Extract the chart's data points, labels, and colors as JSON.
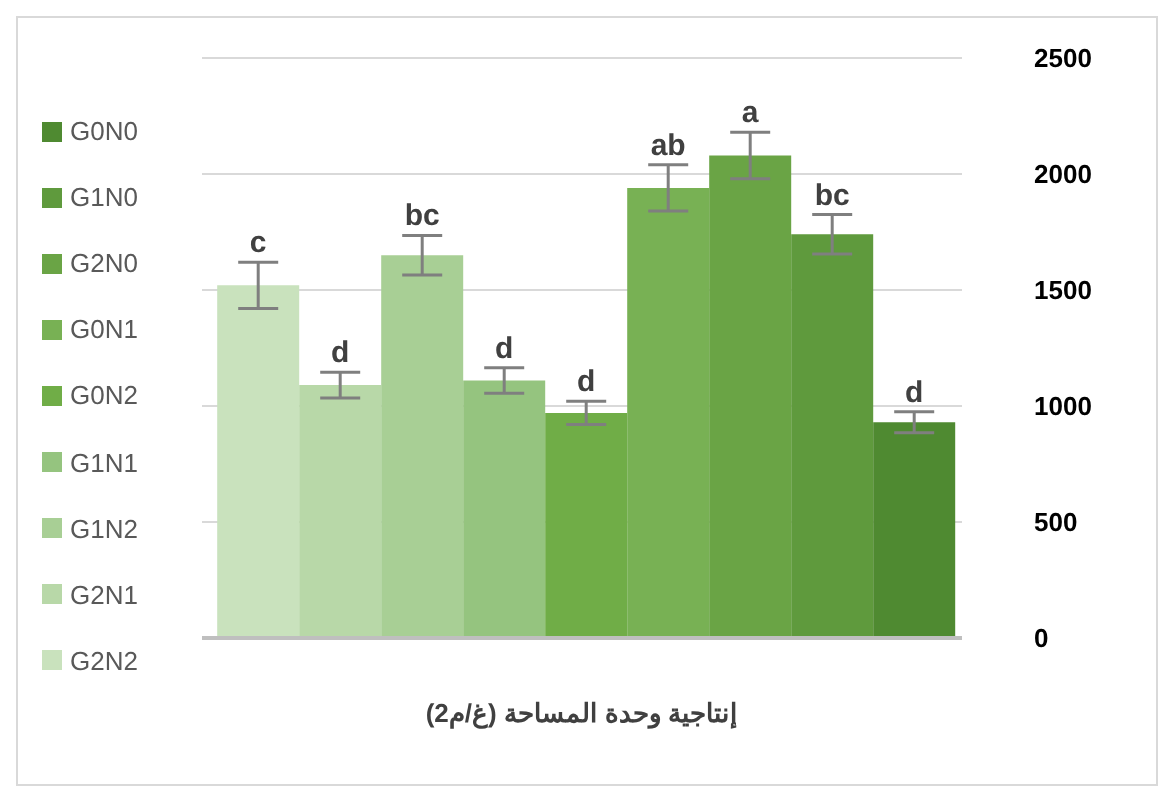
{
  "chart_data": {
    "type": "bar",
    "xlabel": "إنتاجية وحدة المساحة (غ/م2)",
    "categories": [
      null
    ],
    "series": [
      {
        "name": "G2N2",
        "color": "#c9e2bd",
        "values": [
          1520
        ],
        "errors": [
          100
        ],
        "value_labels": [
          "c"
        ]
      },
      {
        "name": "G2N1",
        "color": "#b8d8a8",
        "values": [
          1090
        ],
        "errors": [
          55
        ],
        "value_labels": [
          "d"
        ]
      },
      {
        "name": "G1N2",
        "color": "#a8cf95",
        "values": [
          1650
        ],
        "errors": [
          85
        ],
        "value_labels": [
          "bc"
        ]
      },
      {
        "name": "G1N1",
        "color": "#95c47f",
        "values": [
          1110
        ],
        "errors": [
          55
        ],
        "value_labels": [
          "d"
        ]
      },
      {
        "name": "G0N2",
        "color": "#70ad47",
        "values": [
          970
        ],
        "errors": [
          50
        ],
        "value_labels": [
          "d"
        ]
      },
      {
        "name": "G0N1",
        "color": "#78b154",
        "values": [
          1940
        ],
        "errors": [
          100
        ],
        "value_labels": [
          "ab"
        ]
      },
      {
        "name": "G2N0",
        "color": "#6aa445",
        "values": [
          2080
        ],
        "errors": [
          100
        ],
        "value_labels": [
          "a"
        ]
      },
      {
        "name": "G1N0",
        "color": "#5f9a3d",
        "values": [
          1740
        ],
        "errors": [
          85
        ],
        "value_labels": [
          "bc"
        ]
      },
      {
        "name": "G0N0",
        "color": "#4f8a31",
        "values": [
          930
        ],
        "errors": [
          45
        ],
        "value_labels": [
          "d"
        ]
      }
    ],
    "ylim": [
      0,
      2500
    ],
    "yticks": [
      0,
      500,
      1000,
      1500,
      2000,
      2500
    ],
    "grid": "y",
    "legend": "left"
  }
}
